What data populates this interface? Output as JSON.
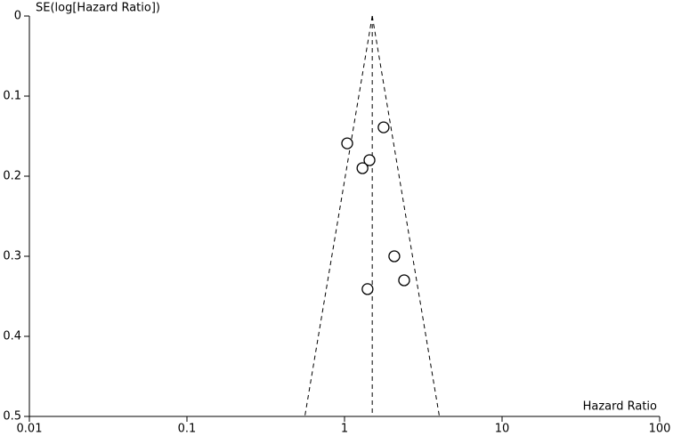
{
  "chart_data": {
    "type": "scatter",
    "x_label": "Hazard Ratio",
    "y_label": "SE(log[Hazard Ratio])",
    "x": [
      1.77,
      1.04,
      1.44,
      1.3,
      2.07,
      2.39,
      1.4
    ],
    "values": [
      0.139,
      0.159,
      0.18,
      0.19,
      0.3,
      0.33,
      0.341
    ],
    "xscale": "log",
    "xlim": [
      0.01,
      100
    ],
    "xticks": [
      0.01,
      0.1,
      1,
      10,
      100
    ],
    "ylim": [
      0,
      0.5
    ],
    "y_inverted": true,
    "yticks": [
      0,
      0.1,
      0.2,
      0.3,
      0.4,
      0.5
    ],
    "funnel": {
      "center": 1.5,
      "lower": 0.56,
      "upper": 4.0
    },
    "marker_color": "#000000",
    "grid": false
  }
}
